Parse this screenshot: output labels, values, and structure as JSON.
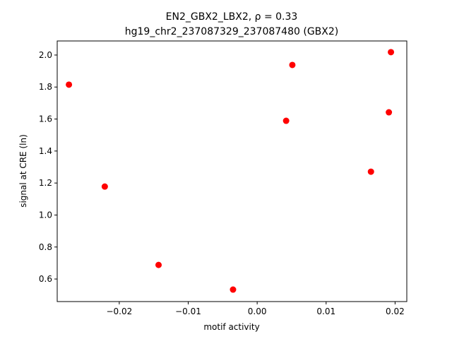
{
  "chart_data": {
    "type": "scatter",
    "title": "EN2_GBX2_LBX2, ρ = 0.33",
    "subtitle": "hg19_chr2_237087329_237087480 (GBX2)",
    "x_label": "motif activity",
    "y_label": "signal at CRE (ln)",
    "color": "#ff0000",
    "x": [
      -0.0273,
      -0.0221,
      -0.0143,
      -0.0035,
      0.0042,
      0.0051,
      0.0165,
      0.0191,
      0.0194
    ],
    "values": [
      1.815,
      1.178,
      0.688,
      0.534,
      1.589,
      1.938,
      1.271,
      1.642,
      2.018
    ],
    "xlim": [
      -0.029,
      0.0217
    ],
    "ylim": [
      0.459,
      2.088
    ],
    "xticks": [
      {
        "value": -0.02,
        "label": "−0.02"
      },
      {
        "value": -0.01,
        "label": "−0.01"
      },
      {
        "value": 0,
        "label": "0.00"
      },
      0.01,
      0.02
    ],
    "yticks": [
      {
        "value": 0.6,
        "label": "0.6"
      },
      {
        "value": 0.8,
        "label": "0.8"
      },
      {
        "value": 1.0,
        "label": "1.0"
      },
      {
        "value": 1.2,
        "label": "1.2"
      },
      {
        "value": 1.4,
        "label": "1.4"
      },
      {
        "value": 1.6,
        "label": "1.6"
      },
      {
        "value": 1.8,
        "label": "1.8"
      },
      {
        "value": 2.0,
        "label": "2.0"
      }
    ]
  }
}
